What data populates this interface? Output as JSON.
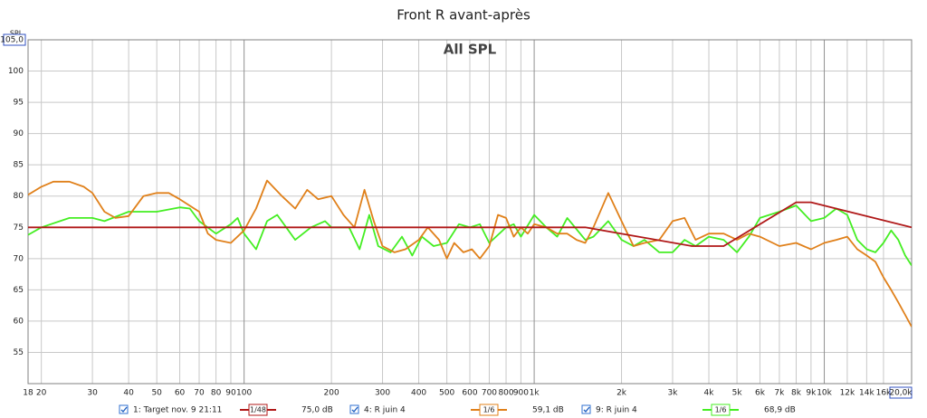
{
  "chart_data": {
    "type": "line",
    "title": "Front R avant-après",
    "annotation": "All SPL",
    "ylabel": "SPL",
    "log_x": true,
    "grid": true,
    "xlim": [
      18,
      20000
    ],
    "ylim": [
      50,
      105
    ],
    "yticks": [
      {
        "value": 105,
        "label": "105,0"
      },
      100,
      95,
      90,
      85,
      80,
      75,
      70,
      65,
      60,
      55
    ],
    "xticks": [
      18,
      20,
      30,
      40,
      50,
      60,
      70,
      80,
      90,
      100,
      200,
      300,
      400,
      500,
      600,
      700,
      800,
      900,
      {
        "value": 1000,
        "label": "1k"
      },
      {
        "value": 2000,
        "label": "2k"
      },
      {
        "value": 3000,
        "label": "3k"
      },
      {
        "value": 4000,
        "label": "4k"
      },
      {
        "value": 5000,
        "label": "5k"
      },
      {
        "value": 6000,
        "label": "6k"
      },
      {
        "value": 7000,
        "label": "7k"
      },
      {
        "value": 8000,
        "label": "8k"
      },
      {
        "value": 9000,
        "label": "9k"
      },
      {
        "value": 10000,
        "label": "10k"
      },
      {
        "value": 12000,
        "label": "12k"
      },
      {
        "value": 14000,
        "label": "14k"
      },
      {
        "value": 16000,
        "label": "16k"
      },
      {
        "value": 20000,
        "label": "20,0k"
      }
    ],
    "series": [
      {
        "name": "1: Target nov. 9 21:11",
        "smoothing": "1/48",
        "legend_value": "75,0 dB",
        "color": "#b01818",
        "x": [
          18,
          1500,
          3500,
          4500,
          8000,
          9000,
          20000
        ],
        "values": [
          75,
          75,
          72,
          72,
          79,
          79,
          75
        ]
      },
      {
        "name": "4: R juin 4",
        "smoothing": "1/6",
        "legend_value": "59,1 dB",
        "color": "#e0801a",
        "x": [
          18,
          20,
          22,
          25,
          28,
          30,
          33,
          36,
          40,
          45,
          50,
          55,
          60,
          70,
          75,
          80,
          90,
          100,
          110,
          120,
          135,
          150,
          165,
          180,
          200,
          220,
          240,
          260,
          280,
          300,
          330,
          360,
          400,
          430,
          470,
          500,
          530,
          570,
          610,
          650,
          700,
          750,
          800,
          850,
          900,
          950,
          1000,
          1100,
          1200,
          1300,
          1400,
          1500,
          1600,
          1800,
          2000,
          2200,
          2400,
          2700,
          3000,
          3300,
          3600,
          4000,
          4500,
          5000,
          5500,
          6000,
          7000,
          8000,
          9000,
          10000,
          11000,
          12000,
          13000,
          14000,
          15000,
          16000,
          17000,
          18000,
          19000,
          20000
        ],
        "values": [
          80.2,
          81.5,
          82.3,
          82.3,
          81.5,
          80.5,
          77.5,
          76.5,
          76.8,
          80,
          80.5,
          80.5,
          79.5,
          77.5,
          74,
          73,
          72.5,
          74.5,
          78,
          82.5,
          80,
          78,
          81,
          79.5,
          80,
          77,
          75,
          81,
          76,
          72,
          71,
          71.5,
          73,
          75,
          73,
          70,
          72.5,
          71,
          71.5,
          70,
          72,
          77,
          76.5,
          73.5,
          75,
          74,
          75.5,
          75,
          74,
          74,
          73,
          72.5,
          75,
          80.5,
          76,
          72,
          72.5,
          73,
          76,
          76.5,
          73,
          74,
          74,
          73,
          74,
          73.5,
          72,
          72.5,
          71.5,
          72.5,
          73,
          73.5,
          71.5,
          70.5,
          69.5,
          67,
          65,
          63,
          61,
          59.1
        ]
      },
      {
        "name": "9: R juin 4",
        "smoothing": "1/6",
        "legend_value": "68,9 dB",
        "color": "#44ee22",
        "x": [
          18,
          20,
          25,
          30,
          33,
          40,
          50,
          60,
          65,
          70,
          80,
          90,
          95,
          100,
          110,
          120,
          130,
          150,
          170,
          190,
          200,
          230,
          250,
          270,
          290,
          320,
          350,
          380,
          410,
          450,
          500,
          550,
          600,
          650,
          700,
          800,
          850,
          900,
          1000,
          1100,
          1200,
          1300,
          1500,
          1600,
          1800,
          2000,
          2200,
          2400,
          2700,
          3000,
          3300,
          3600,
          4000,
          4500,
          5000,
          5500,
          6000,
          7000,
          8000,
          9000,
          10000,
          11000,
          12000,
          13000,
          14000,
          15000,
          16000,
          17000,
          18000,
          19000,
          20000
        ],
        "values": [
          73.8,
          75,
          76.5,
          76.5,
          76,
          77.5,
          77.5,
          78.2,
          78,
          76,
          74,
          75.5,
          76.5,
          74,
          71.5,
          76,
          77,
          73,
          75,
          76,
          75,
          75,
          71.5,
          77,
          72,
          71,
          73.5,
          70.5,
          73.5,
          72,
          72.5,
          75.5,
          75,
          75.5,
          72.5,
          75,
          75.5,
          73.5,
          77,
          75,
          73.5,
          76.5,
          73,
          73.5,
          76,
          73,
          72,
          73,
          71,
          71,
          73,
          72,
          73.5,
          73,
          71,
          73.5,
          76.5,
          77.5,
          78.5,
          76,
          76.5,
          78,
          77,
          73,
          71.5,
          71,
          72.5,
          74.5,
          73,
          70.5,
          68.9
        ]
      }
    ]
  }
}
